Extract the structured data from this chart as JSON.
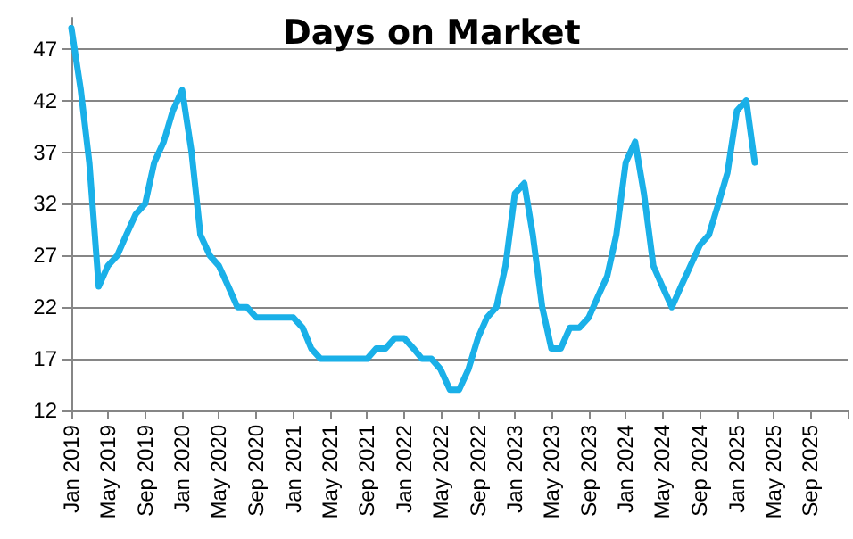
{
  "chart_data": {
    "type": "line",
    "title": "Days on Market",
    "x": [
      "2019-01",
      "2019-02",
      "2019-03",
      "2019-04",
      "2019-05",
      "2019-06",
      "2019-07",
      "2019-08",
      "2019-09",
      "2019-10",
      "2019-11",
      "2019-12",
      "2020-01",
      "2020-02",
      "2020-03",
      "2020-04",
      "2020-05",
      "2020-06",
      "2020-07",
      "2020-08",
      "2020-09",
      "2020-10",
      "2020-11",
      "2020-12",
      "2021-01",
      "2021-02",
      "2021-03",
      "2021-04",
      "2021-05",
      "2021-06",
      "2021-07",
      "2021-08",
      "2021-09",
      "2021-10",
      "2021-11",
      "2021-12",
      "2022-01",
      "2022-02",
      "2022-03",
      "2022-04",
      "2022-05",
      "2022-06",
      "2022-07",
      "2022-08",
      "2022-09",
      "2022-10",
      "2022-11",
      "2022-12",
      "2023-01",
      "2023-02",
      "2023-03",
      "2023-04",
      "2023-05",
      "2023-06",
      "2023-07",
      "2023-08",
      "2023-09",
      "2023-10",
      "2023-11",
      "2023-12",
      "2024-01",
      "2024-02",
      "2024-03",
      "2024-04",
      "2024-05",
      "2024-06",
      "2024-07",
      "2024-08",
      "2024-09",
      "2024-10",
      "2024-11",
      "2024-12",
      "2025-01",
      "2025-02",
      "2025-03"
    ],
    "series": [
      {
        "color": "#1ab0e8",
        "values": [
          49,
          43,
          36,
          24,
          26,
          27,
          29,
          31,
          32,
          36,
          38,
          41,
          43,
          37,
          29,
          27,
          26,
          24,
          22,
          22,
          21,
          21,
          21,
          21,
          21,
          20,
          18,
          17,
          17,
          17,
          17,
          17,
          17,
          18,
          18,
          19,
          19,
          18,
          17,
          17,
          16,
          14,
          14,
          16,
          19,
          21,
          22,
          26,
          33,
          34,
          29,
          22,
          18,
          18,
          20,
          20,
          21,
          23,
          25,
          29,
          36,
          38,
          33,
          26,
          24,
          22,
          24,
          26,
          28,
          29,
          32,
          35,
          41,
          42,
          36
        ]
      }
    ],
    "xlim": [
      "2019-01",
      "2026-01"
    ],
    "xticks": [
      {
        "value": "2019-01",
        "label": "Jan 2019"
      },
      {
        "value": "2019-05",
        "label": "May 2019"
      },
      {
        "value": "2019-09",
        "label": "Sep 2019"
      },
      {
        "value": "2020-01",
        "label": "Jan 2020"
      },
      {
        "value": "2020-05",
        "label": "May 2020"
      },
      {
        "value": "2020-09",
        "label": "Sep 2020"
      },
      {
        "value": "2021-01",
        "label": "Jan 2021"
      },
      {
        "value": "2021-05",
        "label": "May 2021"
      },
      {
        "value": "2021-09",
        "label": "Sep 2021"
      },
      {
        "value": "2022-01",
        "label": "Jan 2022"
      },
      {
        "value": "2022-05",
        "label": "May 2022"
      },
      {
        "value": "2022-09",
        "label": "Sep 2022"
      },
      {
        "value": "2023-01",
        "label": "Jan 2023"
      },
      {
        "value": "2023-05",
        "label": "May 2023"
      },
      {
        "value": "2023-09",
        "label": "Sep 2023"
      },
      {
        "value": "2024-01",
        "label": "Jan 2024"
      },
      {
        "value": "2024-05",
        "label": "May 2024"
      },
      {
        "value": "2024-09",
        "label": "Sep 2024"
      },
      {
        "value": "2025-01",
        "label": "Jan 2025"
      },
      {
        "value": "2025-05",
        "label": "May 2025"
      },
      {
        "value": "2025-09",
        "label": "Sep 2025"
      },
      {
        "value": "2026-01",
        "label": null
      }
    ],
    "ylim": [
      12,
      50
    ],
    "yticks": [
      12,
      17,
      22,
      27,
      32,
      37,
      42,
      47
    ],
    "grid": "y",
    "marker": "none",
    "line_style": "solid"
  }
}
